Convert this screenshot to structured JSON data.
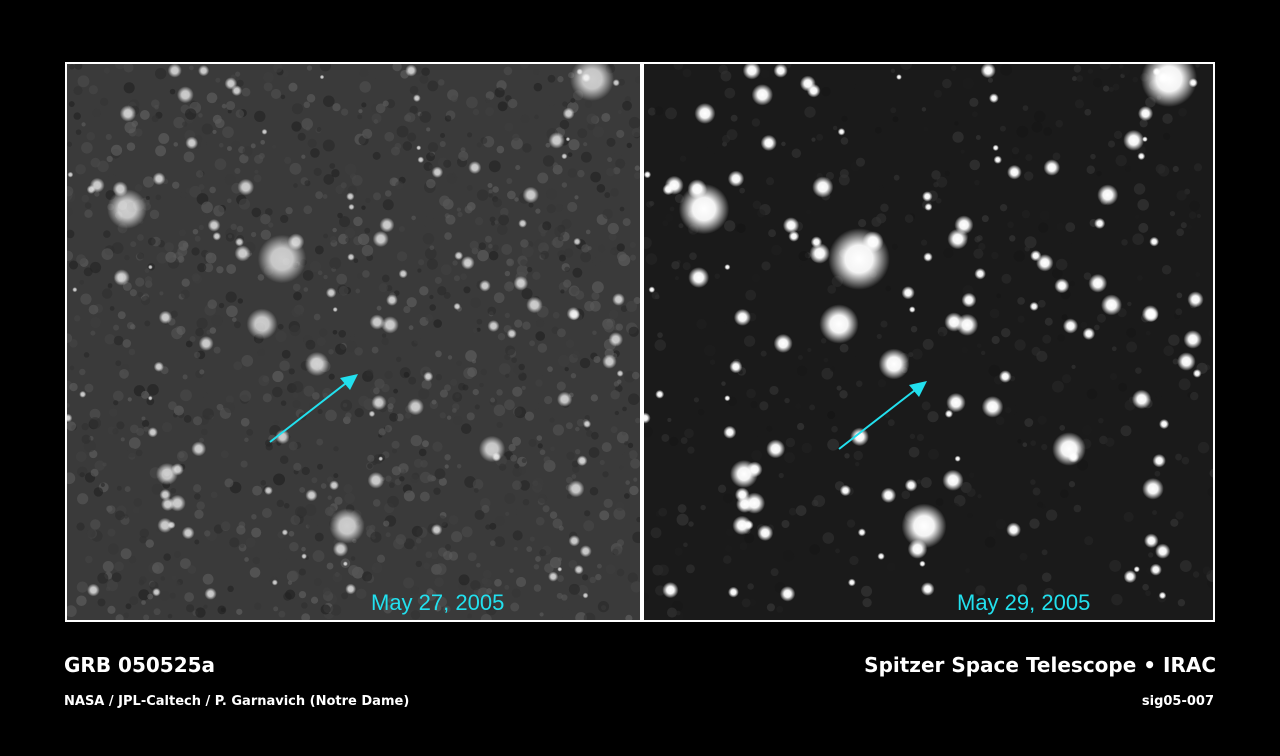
{
  "panels": [
    {
      "date": "May 27, 2005",
      "arrow_color": "#22e0ee",
      "contrast": "low"
    },
    {
      "date": "May 29, 2005",
      "arrow_color": "#22e0ee",
      "contrast": "high"
    }
  ],
  "caption": {
    "object": "GRB 050525a",
    "credit": "NASA / JPL-Caltech / P. Garnavich (Notre Dame)",
    "instrument": "Spitzer Space Telescope • IRAC",
    "id": "sig05-007"
  }
}
